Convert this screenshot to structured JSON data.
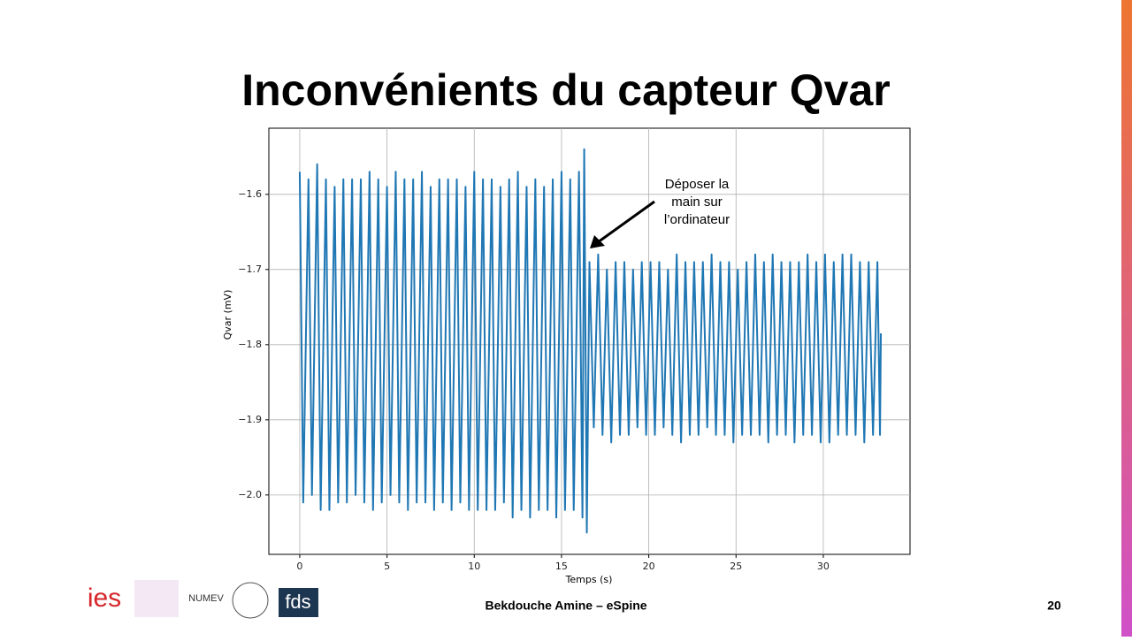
{
  "slide": {
    "title": "Inconvénients du capteur Qvar",
    "footer": "Bekdouche Amine – eSpine",
    "page_number": "20",
    "logos": [
      "ies",
      "NUMEV",
      "fds"
    ]
  },
  "chart_data": {
    "type": "line",
    "color": "#1f77b4",
    "grid": true,
    "xlabel": "Temps (s)",
    "ylabel": "Qvar (mV)",
    "annotation": [
      "Déposer la",
      "main sur",
      "l’ordinateur"
    ],
    "xlim": [
      -1.77,
      34.97
    ],
    "xticks": [
      0,
      5,
      10,
      15,
      20,
      25,
      30
    ],
    "ylim": [
      -2.079,
      -1.512
    ],
    "yticks": [
      {
        "value": -2.0,
        "label": "−2.0"
      },
      {
        "value": -1.9,
        "label": "−1.9"
      },
      {
        "value": -1.8,
        "label": "−1.8"
      },
      {
        "value": -1.7,
        "label": "−1.7"
      },
      {
        "value": -1.6,
        "label": "−1.6"
      }
    ],
    "x": [
      0,
      0.2,
      0.5,
      0.7,
      1,
      1.2,
      1.5,
      1.7,
      2,
      2.2,
      2.5,
      2.7,
      3,
      3.2,
      3.5,
      3.7,
      4,
      4.2,
      4.5,
      4.7,
      5,
      5.2,
      5.5,
      5.7,
      6,
      6.2,
      6.5,
      6.7,
      7,
      7.2,
      7.5,
      7.7,
      8,
      8.2,
      8.5,
      8.7,
      9,
      9.2,
      9.5,
      9.7,
      10,
      10.2,
      10.5,
      10.7,
      11,
      11.2,
      11.5,
      11.7,
      12,
      12.2,
      12.5,
      12.7,
      13,
      13.2,
      13.5,
      13.7,
      14,
      14.2,
      14.5,
      14.7,
      15,
      15.2,
      15.5,
      15.7,
      16,
      16.2,
      16.3,
      16.45,
      16.6,
      16.85,
      17.1,
      17.35,
      17.6,
      17.85,
      18.1,
      18.35,
      18.6,
      18.85,
      19.1,
      19.35,
      19.6,
      19.85,
      20.1,
      20.35,
      20.6,
      20.85,
      21.1,
      21.35,
      21.6,
      21.85,
      22.1,
      22.35,
      22.6,
      22.85,
      23.1,
      23.35,
      23.6,
      23.85,
      24.1,
      24.35,
      24.6,
      24.85,
      25.1,
      25.35,
      25.6,
      25.85,
      26.1,
      26.35,
      26.6,
      26.85,
      27.1,
      27.35,
      27.6,
      27.85,
      28.1,
      28.35,
      28.6,
      28.85,
      29.1,
      29.35,
      29.6,
      29.85,
      30.1,
      30.35,
      30.6,
      30.85,
      31.1,
      31.35,
      31.6,
      31.85,
      32.1,
      32.35,
      32.6,
      32.85,
      33.1,
      33.25,
      33.3
    ],
    "values": [
      -1.57,
      -2.01,
      -1.58,
      -2.0,
      -1.56,
      -2.02,
      -1.58,
      -2.02,
      -1.59,
      -2.01,
      -1.58,
      -2.01,
      -1.58,
      -2.0,
      -1.58,
      -2.01,
      -1.57,
      -2.02,
      -1.58,
      -2.01,
      -1.59,
      -2.0,
      -1.57,
      -2.01,
      -1.58,
      -2.02,
      -1.58,
      -2.01,
      -1.57,
      -2.01,
      -1.59,
      -2.02,
      -1.58,
      -2.01,
      -1.58,
      -2.02,
      -1.58,
      -2.01,
      -1.59,
      -2.02,
      -1.57,
      -2.02,
      -1.58,
      -2.02,
      -1.58,
      -2.02,
      -1.59,
      -2.01,
      -1.58,
      -2.03,
      -1.57,
      -2.02,
      -1.59,
      -2.03,
      -1.58,
      -2.02,
      -1.59,
      -2.02,
      -1.58,
      -2.03,
      -1.57,
      -2.02,
      -1.58,
      -2.02,
      -1.57,
      -2.03,
      -1.54,
      -2.05,
      -1.69,
      -1.91,
      -1.68,
      -1.92,
      -1.7,
      -1.93,
      -1.69,
      -1.92,
      -1.69,
      -1.92,
      -1.7,
      -1.91,
      -1.69,
      -1.92,
      -1.69,
      -1.92,
      -1.69,
      -1.91,
      -1.7,
      -1.92,
      -1.68,
      -1.93,
      -1.69,
      -1.92,
      -1.69,
      -1.92,
      -1.69,
      -1.91,
      -1.68,
      -1.92,
      -1.69,
      -1.92,
      -1.69,
      -1.93,
      -1.7,
      -1.92,
      -1.69,
      -1.92,
      -1.68,
      -1.92,
      -1.69,
      -1.93,
      -1.68,
      -1.92,
      -1.69,
      -1.92,
      -1.69,
      -1.93,
      -1.69,
      -1.92,
      -1.68,
      -1.92,
      -1.69,
      -1.93,
      -1.68,
      -1.93,
      -1.69,
      -1.92,
      -1.68,
      -1.92,
      -1.68,
      -1.92,
      -1.69,
      -1.93,
      -1.69,
      -1.92,
      -1.69,
      -1.92,
      -1.785
    ]
  }
}
